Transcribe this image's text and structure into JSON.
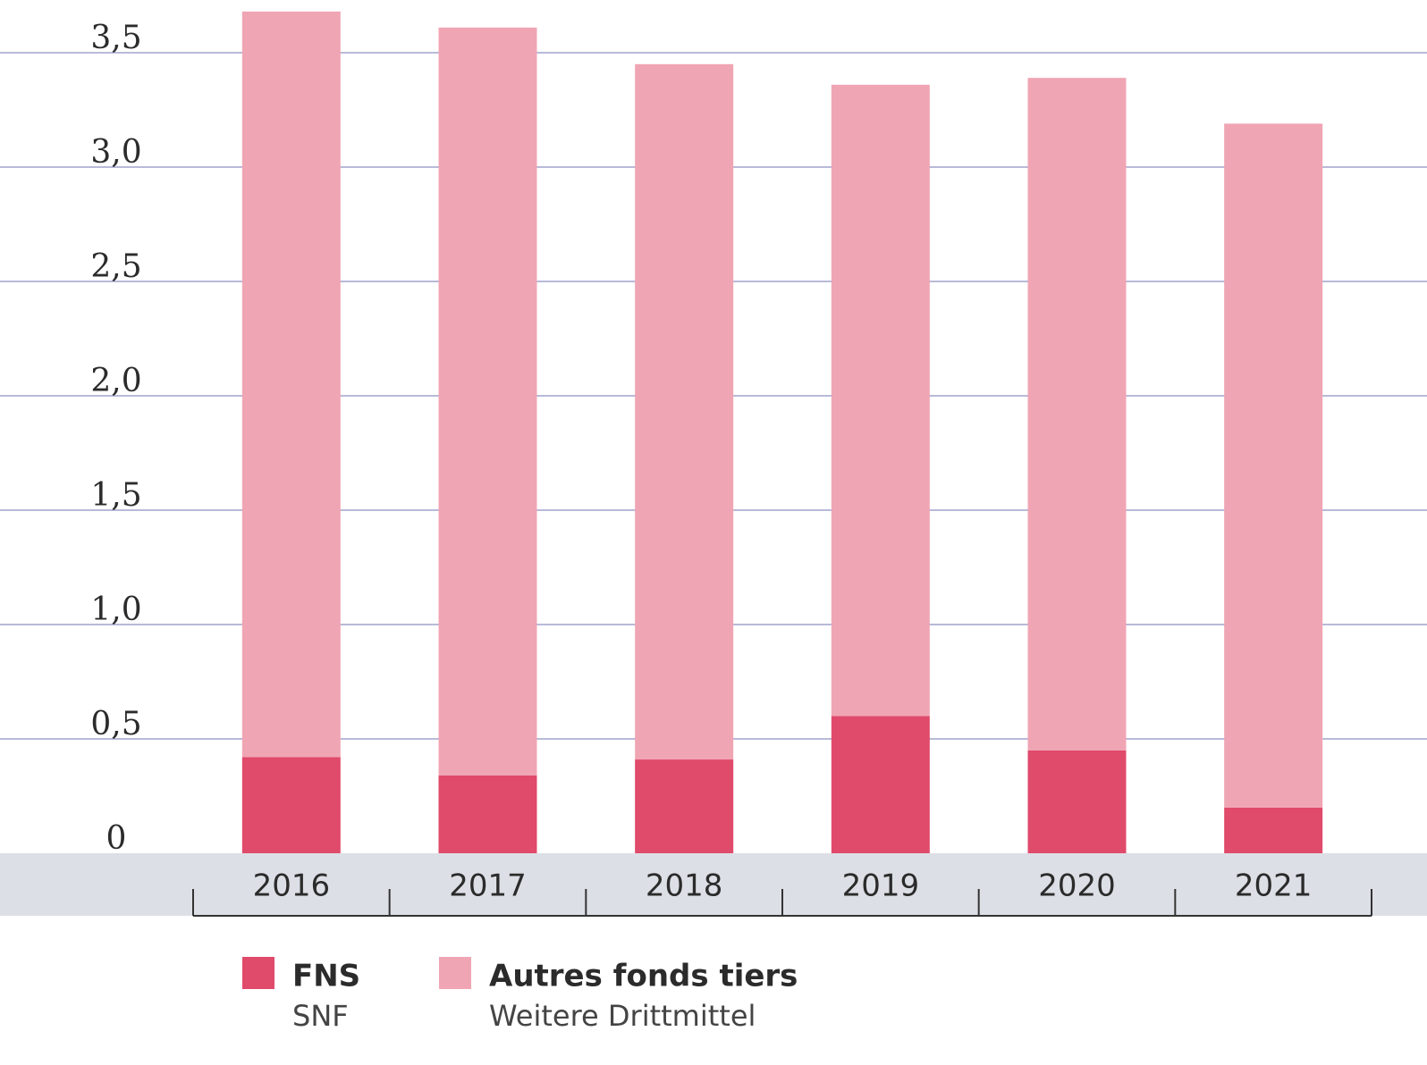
{
  "chart_data": {
    "type": "stacked_bar",
    "categories": [
      "2016",
      "2017",
      "2018",
      "2019",
      "2020",
      "2021"
    ],
    "series": [
      {
        "name": "FNS",
        "name_secondary": "SNF",
        "color": "#e04a6b",
        "values": [
          0.42,
          0.34,
          0.41,
          0.6,
          0.45,
          0.2
        ]
      },
      {
        "name": "Autres fonds tiers",
        "name_secondary": "Weitere Drittmittel",
        "color": "#f0a5b4",
        "values": [
          3.26,
          3.27,
          3.04,
          2.76,
          2.94,
          2.99
        ]
      }
    ],
    "ylim": [
      0,
      3.7
    ],
    "yticks": [
      0,
      {
        "value": 0.5,
        "label": "0,5"
      },
      {
        "value": 1,
        "label": "1,0"
      },
      {
        "value": 1.5,
        "label": "1,5"
      },
      {
        "value": 2,
        "label": "2,0"
      },
      {
        "value": 2.5,
        "label": "2,5"
      },
      {
        "value": 3,
        "label": "3,0"
      },
      {
        "value": 3.5,
        "label": "3,5"
      }
    ],
    "grid": true
  }
}
